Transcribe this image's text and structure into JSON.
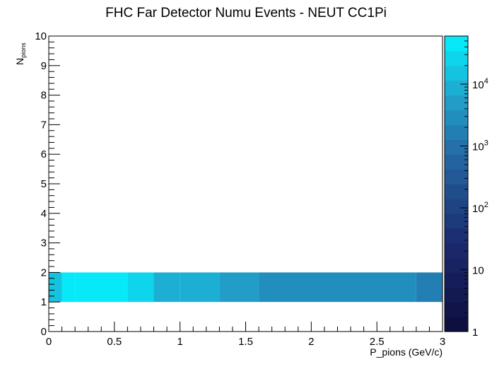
{
  "chart_data": {
    "type": "heatmap",
    "title": "FHC Far Detector Numu Events - NEUT CC1Pi",
    "xlabel": "P_pions (GeV/c)",
    "ylabel": {
      "main": "N",
      "sub": "pions"
    },
    "xlim": [
      0,
      3
    ],
    "ylim": [
      0,
      10
    ],
    "x_ticks": [
      0,
      0.5,
      1,
      1.5,
      2,
      2.5,
      3
    ],
    "x_tick_labels": [
      "0",
      "0.5",
      "1",
      "1.5",
      "2",
      "2.5",
      "3"
    ],
    "y_ticks": [
      0,
      1,
      2,
      3,
      4,
      5,
      6,
      7,
      8,
      9,
      10
    ],
    "y_tick_labels": [
      "0",
      "1",
      "2",
      "3",
      "4",
      "5",
      "6",
      "7",
      "8",
      "9",
      "10"
    ],
    "z_scale": "log",
    "z_range": [
      1,
      60000
    ],
    "colorbar_ticks": [
      1,
      10,
      100,
      1000,
      10000
    ],
    "colorbar_tick_labels": [
      {
        "base": "1",
        "exp": ""
      },
      {
        "base": "10",
        "exp": ""
      },
      {
        "base": "10",
        "exp": "2"
      },
      {
        "base": "10",
        "exp": "3"
      },
      {
        "base": "10",
        "exp": "4"
      }
    ],
    "colorbar_levels": 20,
    "cells": [
      {
        "x0": 0.0,
        "x1": 0.1,
        "y0": 1,
        "y1": 2,
        "value": 18000
      },
      {
        "x0": 0.1,
        "x1": 0.2,
        "y0": 1,
        "y1": 2,
        "value": 55000
      },
      {
        "x0": 0.2,
        "x1": 0.6,
        "y0": 1,
        "y1": 2,
        "value": 40000
      },
      {
        "x0": 0.6,
        "x1": 0.8,
        "y0": 1,
        "y1": 2,
        "value": 22000
      },
      {
        "x0": 0.8,
        "x1": 1.0,
        "y0": 1,
        "y1": 2,
        "value": 11000
      },
      {
        "x0": 1.0,
        "x1": 1.3,
        "y0": 1,
        "y1": 2,
        "value": 7000
      },
      {
        "x0": 1.3,
        "x1": 1.6,
        "y0": 1,
        "y1": 2,
        "value": 5500
      },
      {
        "x0": 1.6,
        "x1": 2.8,
        "y0": 1,
        "y1": 2,
        "value": 3500
      },
      {
        "x0": 2.8,
        "x1": 3.0,
        "y0": 1,
        "y1": 2,
        "value": 2000
      }
    ]
  }
}
